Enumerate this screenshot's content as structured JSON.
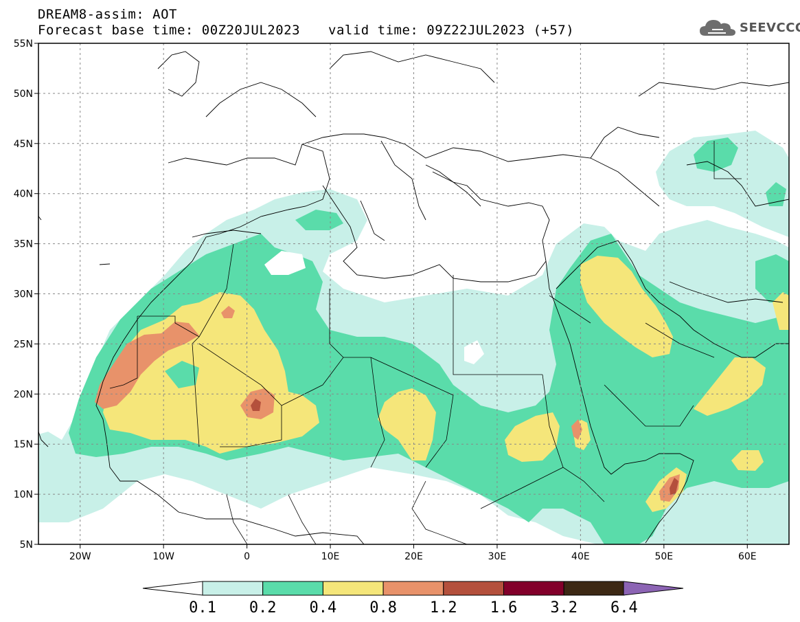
{
  "header": {
    "line1": "DREAM8-assim: AOT",
    "line2": "Forecast base time: 00Z20JUL2023",
    "valid": "valid time: 09Z22JUL2023 (+57)",
    "logo_text": "SEEVCCC",
    "logo_icon": "cloud-icon"
  },
  "axes": {
    "lat_labels": [
      "55N",
      "50N",
      "45N",
      "40N",
      "35N",
      "30N",
      "25N",
      "20N",
      "15N",
      "10N",
      "5N"
    ],
    "lon_labels": [
      "20W",
      "10W",
      "0",
      "10E",
      "20E",
      "30E",
      "40E",
      "50E",
      "60E"
    ],
    "lat_values": [
      55,
      50,
      45,
      40,
      35,
      30,
      25,
      20,
      15,
      10,
      5
    ],
    "lon_values": [
      -20,
      -10,
      0,
      10,
      20,
      30,
      40,
      50,
      60
    ],
    "lon_range": [
      -25,
      65
    ],
    "lat_range": [
      5,
      55
    ]
  },
  "colorbar": {
    "labels": [
      "0.1",
      "0.2",
      "0.4",
      "0.8",
      "1.2",
      "1.6",
      "3.2",
      "6.4"
    ],
    "colors": [
      "#c8f0e8",
      "#5adcaa",
      "#f5e67a",
      "#e8926a",
      "#b4503c",
      "#82002a",
      "#3c2814",
      "#8c64b4"
    ],
    "under_color": "#ffffff",
    "over_color": "#8c64b4"
  },
  "map_colors": {
    "l1": "#c8f0e8",
    "l2": "#5adcaa",
    "l3": "#f5e67a",
    "l4": "#e8926a",
    "l5": "#b4503c"
  }
}
